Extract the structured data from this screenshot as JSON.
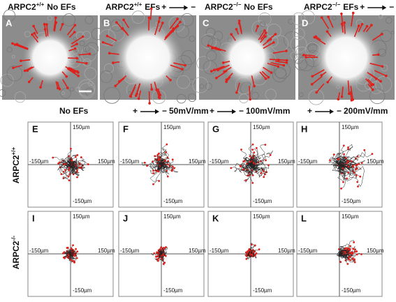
{
  "micrographs": [
    {
      "label": "A",
      "gene": "ARPC2",
      "genotype": "+/+",
      "condition": "No EFs"
    },
    {
      "label": "B",
      "gene": "ARPC2",
      "genotype": "+/+",
      "condition": "EFs",
      "plus": "+",
      "minus": "−"
    },
    {
      "label": "C",
      "gene": "ARPC2",
      "genotype": "−/−",
      "condition": "No EFs"
    },
    {
      "label": "D",
      "gene": "ARPC2",
      "genotype": "−/−",
      "condition": "EFs",
      "plus": "+",
      "minus": "−"
    }
  ],
  "columns": [
    {
      "label": "No EFs"
    },
    {
      "plus": "+",
      "minus": "−",
      "field": "50mV/mm"
    },
    {
      "plus": "+",
      "minus": "−",
      "field": "100mV/mm"
    },
    {
      "plus": "+",
      "minus": "−",
      "field": "200mV/mm"
    }
  ],
  "rows": [
    {
      "gene": "ARPC2",
      "genotype": "+/+"
    },
    {
      "gene": "ARPC2",
      "genotype": "-/-"
    }
  ],
  "plots": [
    {
      "label": "E",
      "top": "150µm",
      "left": "-150µm",
      "right": "150µm",
      "bottom": "-150µm"
    },
    {
      "label": "F",
      "top": "150µm",
      "left": "-150µm",
      "right": "150µm",
      "bottom": "-150µm"
    },
    {
      "label": "G",
      "top": "150µm",
      "left": "-150µm",
      "right": "150µm",
      "bottom": "-150µm"
    },
    {
      "label": "H",
      "top": "150µm",
      "left": "-150µm",
      "right": "150µm",
      "bottom": "-150µm"
    },
    {
      "label": "I",
      "top": "150µm",
      "left": "-150µm",
      "right": "150µm",
      "bottom": "-150µm"
    },
    {
      "label": "J",
      "top": "150µm",
      "left": "-150µm",
      "right": "150µm",
      "bottom": "-150µm"
    },
    {
      "label": "K",
      "top": "150µm",
      "left": "-150µm",
      "right": "150µm",
      "bottom": "-150µm"
    },
    {
      "label": "L",
      "top": "150µm",
      "left": "-150µm",
      "right": "150µm",
      "bottom": "-150µm"
    }
  ]
}
